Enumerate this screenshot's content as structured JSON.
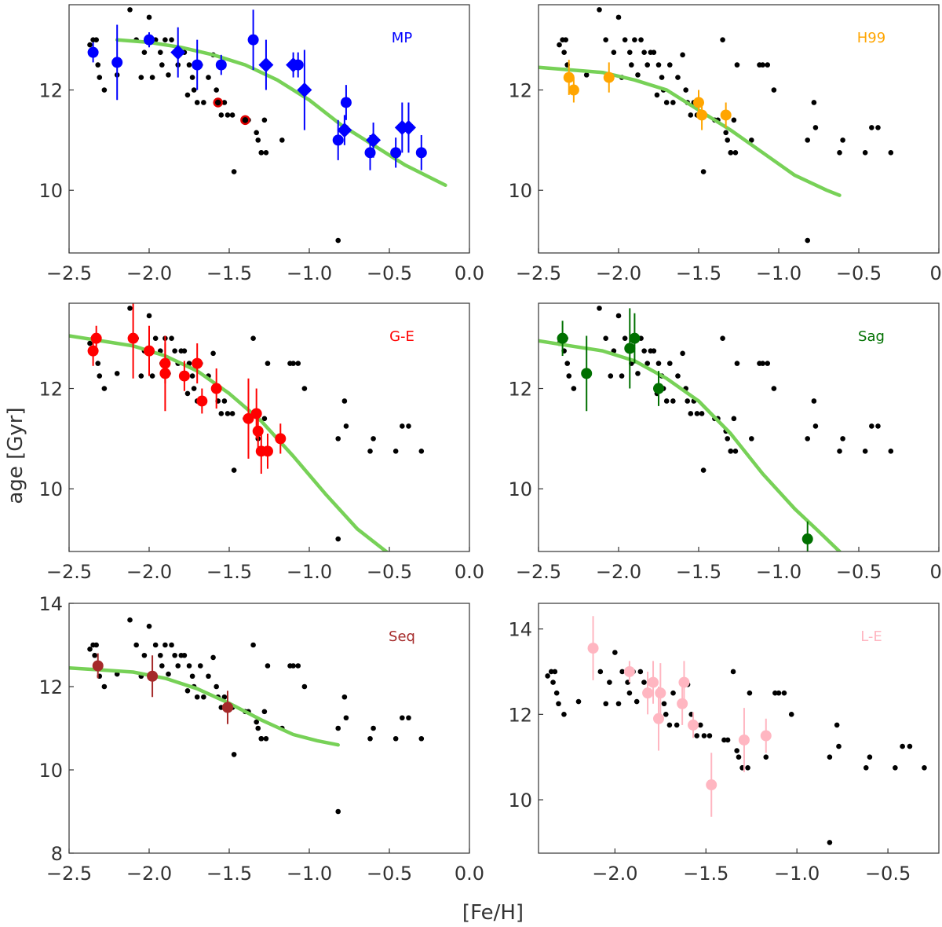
{
  "figure": {
    "ylabel": "age [Gyr]",
    "xlabel": "[Fe/H]",
    "fit_color": "#77d157",
    "background_color": "#000000"
  },
  "chart_data": [
    {
      "type": "scatter",
      "label": "MP",
      "label_color": "#0000ff",
      "xlim": [
        -2.5,
        0.0
      ],
      "ylim": [
        8.75,
        13.7
      ],
      "xticks": [
        -2.5,
        -2.0,
        -1.5,
        -1.0,
        -0.5,
        0.0
      ],
      "xtick_labels": [
        "−2.5",
        "−2.0",
        "−1.5",
        "−1.0",
        "−0.5",
        "0.0"
      ],
      "yticks": [
        10,
        12
      ],
      "ytick_labels": [
        "10",
        "12"
      ],
      "fit": {
        "x": [
          -2.2,
          -2.0,
          -1.8,
          -1.6,
          -1.4,
          -1.2,
          -1.0,
          -0.8,
          -0.6,
          -0.4,
          -0.15
        ],
        "y": [
          13.0,
          12.95,
          12.85,
          12.7,
          12.5,
          12.2,
          11.8,
          11.3,
          10.9,
          10.5,
          10.1
        ]
      },
      "highlight": {
        "name": "MP",
        "color": "#0000ff",
        "points": [
          {
            "x": -2.35,
            "y": 12.75,
            "err": 0.2,
            "marker": "o"
          },
          {
            "x": -2.2,
            "y": 12.55,
            "err": 0.75,
            "marker": "o"
          },
          {
            "x": -2.0,
            "y": 13.0,
            "err": 0.15,
            "marker": "o"
          },
          {
            "x": -1.82,
            "y": 12.75,
            "err": 0.5,
            "marker": "D"
          },
          {
            "x": -1.7,
            "y": 12.5,
            "err": 0.5,
            "marker": "o"
          },
          {
            "x": -1.55,
            "y": 12.5,
            "err": 0.2,
            "marker": "o"
          },
          {
            "x": -1.35,
            "y": 13.0,
            "err": 0.6,
            "marker": "o"
          },
          {
            "x": -1.27,
            "y": 12.5,
            "err": 0.5,
            "marker": "D"
          },
          {
            "x": -1.1,
            "y": 12.5,
            "err": 0.25,
            "marker": "D"
          },
          {
            "x": -1.07,
            "y": 12.5,
            "err": 0.25,
            "marker": "o"
          },
          {
            "x": -1.03,
            "y": 12.0,
            "err": 0.8,
            "marker": "D"
          },
          {
            "x": -0.82,
            "y": 11.0,
            "err": 0.4,
            "marker": "o"
          },
          {
            "x": -0.78,
            "y": 11.2,
            "err": 0.3,
            "marker": "D"
          },
          {
            "x": -0.77,
            "y": 11.75,
            "err": 0.35,
            "marker": "o"
          },
          {
            "x": -0.62,
            "y": 10.75,
            "err": 0.35,
            "marker": "o"
          },
          {
            "x": -0.6,
            "y": 11.0,
            "err": 0.35,
            "marker": "D"
          },
          {
            "x": -0.46,
            "y": 10.75,
            "err": 0.3,
            "marker": "o"
          },
          {
            "x": -0.42,
            "y": 11.25,
            "err": 0.5,
            "marker": "D"
          },
          {
            "x": -0.38,
            "y": 11.25,
            "err": 0.5,
            "marker": "D"
          },
          {
            "x": -0.3,
            "y": 10.75,
            "err": 0.35,
            "marker": "o"
          }
        ]
      },
      "extra": {
        "name": "red-ringed",
        "points": [
          {
            "x": -1.57,
            "y": 11.75
          },
          {
            "x": -1.4,
            "y": 11.4
          }
        ]
      }
    },
    {
      "type": "scatter",
      "label": "H99",
      "label_color": "#ffa500",
      "xlim": [
        -2.5,
        0.0
      ],
      "ylim": [
        8.75,
        13.7
      ],
      "xticks": [
        -2.5,
        -2.0,
        -1.5,
        -1.0,
        -0.5,
        0.0
      ],
      "xtick_labels": [
        "−2.5",
        "−2.0",
        "−1.5",
        "−1.0",
        "−0.5",
        "0."
      ],
      "yticks": [
        10,
        12
      ],
      "ytick_labels": [
        "10",
        "12"
      ],
      "fit": {
        "x": [
          -2.5,
          -2.3,
          -2.1,
          -1.9,
          -1.7,
          -1.5,
          -1.3,
          -1.1,
          -0.9,
          -0.7,
          -0.62
        ],
        "y": [
          12.45,
          12.4,
          12.35,
          12.2,
          12.0,
          11.6,
          11.2,
          10.75,
          10.3,
          10.0,
          9.9
        ]
      },
      "highlight": {
        "name": "H99",
        "color": "#ffa500",
        "points": [
          {
            "x": -2.31,
            "y": 12.25,
            "err": 0.35,
            "marker": "o"
          },
          {
            "x": -2.28,
            "y": 12.0,
            "err": 0.25,
            "marker": "o"
          },
          {
            "x": -2.06,
            "y": 12.25,
            "err": 0.3,
            "marker": "o"
          },
          {
            "x": -1.5,
            "y": 11.75,
            "err": 0.25,
            "marker": "o"
          },
          {
            "x": -1.48,
            "y": 11.5,
            "err": 0.3,
            "marker": "o"
          },
          {
            "x": -1.33,
            "y": 11.5,
            "err": 0.25,
            "marker": "o"
          }
        ]
      }
    },
    {
      "type": "scatter",
      "label": "G-E",
      "label_color": "#ff0000",
      "xlim": [
        -2.5,
        0.0
      ],
      "ylim": [
        8.75,
        13.7
      ],
      "xticks": [
        -2.5,
        -2.0,
        -1.5,
        -1.0,
        -0.5,
        0.0
      ],
      "xtick_labels": [
        "−2.5",
        "−2.0",
        "−1.5",
        "−1.0",
        "−0.5",
        "0.0"
      ],
      "yticks": [
        10,
        12
      ],
      "ytick_labels": [
        "10",
        "12"
      ],
      "fit": {
        "x": [
          -2.5,
          -2.3,
          -2.1,
          -1.9,
          -1.7,
          -1.5,
          -1.3,
          -1.1,
          -0.9,
          -0.7,
          -0.5
        ],
        "y": [
          13.05,
          12.95,
          12.85,
          12.65,
          12.35,
          11.9,
          11.35,
          10.65,
          9.9,
          9.2,
          8.7
        ]
      },
      "highlight": {
        "name": "G-E",
        "color": "#ff0000",
        "points": [
          {
            "x": -2.35,
            "y": 12.75,
            "err": 0.3,
            "marker": "o"
          },
          {
            "x": -2.33,
            "y": 13.0,
            "err": 0.25,
            "marker": "o"
          },
          {
            "x": -2.1,
            "y": 13.0,
            "err": 0.8,
            "marker": "o"
          },
          {
            "x": -2.0,
            "y": 12.75,
            "err": 0.5,
            "marker": "o"
          },
          {
            "x": -1.9,
            "y": 12.5,
            "err": 0.4,
            "marker": "o"
          },
          {
            "x": -1.9,
            "y": 12.3,
            "err": 0.75,
            "marker": "o"
          },
          {
            "x": -1.78,
            "y": 12.25,
            "err": 0.3,
            "marker": "o"
          },
          {
            "x": -1.7,
            "y": 12.5,
            "err": 0.4,
            "marker": "o"
          },
          {
            "x": -1.67,
            "y": 11.75,
            "err": 0.25,
            "marker": "o"
          },
          {
            "x": -1.58,
            "y": 12.0,
            "err": 0.4,
            "marker": "o"
          },
          {
            "x": -1.38,
            "y": 11.4,
            "err": 0.8,
            "marker": "o"
          },
          {
            "x": -1.33,
            "y": 11.5,
            "err": 0.5,
            "marker": "o"
          },
          {
            "x": -1.32,
            "y": 11.15,
            "err": 0.4,
            "marker": "o"
          },
          {
            "x": -1.3,
            "y": 10.75,
            "err": 0.45,
            "marker": "o"
          },
          {
            "x": -1.26,
            "y": 10.75,
            "err": 0.35,
            "marker": "o"
          },
          {
            "x": -1.18,
            "y": 11.0,
            "err": 0.3,
            "marker": "o"
          }
        ]
      }
    },
    {
      "type": "scatter",
      "label": "Sag",
      "label_color": "#007000",
      "xlim": [
        -2.5,
        0.0
      ],
      "ylim": [
        8.75,
        13.7
      ],
      "xticks": [
        -2.5,
        -2.0,
        -1.5,
        -1.0,
        -0.5,
        0.0
      ],
      "xtick_labels": [
        "−2.5",
        "−2.0",
        "−1.5",
        "−1.0",
        "−0.5",
        "0."
      ],
      "yticks": [
        10,
        12
      ],
      "ytick_labels": [
        "10",
        "12"
      ],
      "fit": {
        "x": [
          -2.5,
          -2.3,
          -2.1,
          -1.9,
          -1.7,
          -1.5,
          -1.3,
          -1.1,
          -0.9,
          -0.75,
          -0.62
        ],
        "y": [
          12.95,
          12.85,
          12.75,
          12.55,
          12.2,
          11.75,
          11.1,
          10.3,
          9.6,
          9.15,
          8.75
        ]
      },
      "highlight": {
        "name": "Sag",
        "color": "#007000",
        "points": [
          {
            "x": -2.35,
            "y": 13.0,
            "err": 0.35,
            "marker": "o"
          },
          {
            "x": -2.2,
            "y": 12.3,
            "err": 0.75,
            "marker": "o"
          },
          {
            "x": -1.93,
            "y": 12.8,
            "err": 0.8,
            "marker": "o"
          },
          {
            "x": -1.9,
            "y": 13.0,
            "err": 0.5,
            "marker": "o"
          },
          {
            "x": -1.75,
            "y": 12.0,
            "err": 0.35,
            "marker": "o"
          },
          {
            "x": -0.82,
            "y": 9.0,
            "err": 0.35,
            "marker": "o"
          }
        ]
      }
    },
    {
      "type": "scatter",
      "label": "Seq",
      "label_color": "#a52a2a",
      "xlim": [
        -2.5,
        0.0
      ],
      "ylim": [
        8.0,
        14.0
      ],
      "xticks": [
        -2.5,
        -2.0,
        -1.5,
        -1.0,
        -0.5,
        0.0
      ],
      "xtick_labels": [
        "−2.5",
        "−2.0",
        "−1.5",
        "−1.0",
        "−0.5",
        "0.0"
      ],
      "yticks": [
        8,
        10,
        12,
        14
      ],
      "ytick_labels": [
        "8",
        "10",
        "12",
        "14"
      ],
      "fit": {
        "x": [
          -2.5,
          -2.3,
          -2.1,
          -1.9,
          -1.7,
          -1.5,
          -1.3,
          -1.1,
          -0.95,
          -0.82
        ],
        "y": [
          12.45,
          12.4,
          12.35,
          12.2,
          11.95,
          11.6,
          11.2,
          10.85,
          10.7,
          10.6
        ]
      },
      "highlight": {
        "name": "Seq",
        "color": "#a52a2a",
        "points": [
          {
            "x": -2.32,
            "y": 12.5,
            "err": 0.3,
            "marker": "o"
          },
          {
            "x": -1.98,
            "y": 12.25,
            "err": 0.5,
            "marker": "o"
          },
          {
            "x": -1.51,
            "y": 11.5,
            "err": 0.4,
            "marker": "o"
          }
        ]
      }
    },
    {
      "type": "scatter",
      "label": "L-E",
      "label_color": "#ffb6c1",
      "xlim": [
        -2.42,
        -0.22
      ],
      "ylim": [
        8.75,
        14.6
      ],
      "xticks": [
        -2.0,
        -1.5,
        -1.0,
        -0.5
      ],
      "xtick_labels": [
        "−2.0",
        "−1.5",
        "−1.0",
        "−0.5"
      ],
      "yticks": [
        10,
        12,
        14
      ],
      "ytick_labels": [
        "10",
        "12",
        "14"
      ],
      "fit": null,
      "highlight": {
        "name": "L-E",
        "color": "#ffb6c1",
        "points": [
          {
            "x": -2.12,
            "y": 13.55,
            "err": 0.75,
            "marker": "o"
          },
          {
            "x": -1.92,
            "y": 13.0,
            "err": 0.25,
            "marker": "o"
          },
          {
            "x": -1.82,
            "y": 12.5,
            "err": 0.5,
            "marker": "o"
          },
          {
            "x": -1.79,
            "y": 12.75,
            "err": 0.5,
            "marker": "o"
          },
          {
            "x": -1.76,
            "y": 11.9,
            "err": 0.75,
            "marker": "o"
          },
          {
            "x": -1.75,
            "y": 12.5,
            "err": 0.7,
            "marker": "o"
          },
          {
            "x": -1.63,
            "y": 12.25,
            "err": 0.5,
            "marker": "o"
          },
          {
            "x": -1.62,
            "y": 12.75,
            "err": 0.5,
            "marker": "o"
          },
          {
            "x": -1.57,
            "y": 11.75,
            "err": 0.3,
            "marker": "o"
          },
          {
            "x": -1.47,
            "y": 10.35,
            "err": 0.75,
            "marker": "o"
          },
          {
            "x": -1.29,
            "y": 11.4,
            "err": 0.75,
            "marker": "o"
          },
          {
            "x": -1.17,
            "y": 11.5,
            "err": 0.4,
            "marker": "o"
          }
        ]
      }
    }
  ],
  "background_points": [
    [
      -2.37,
      12.9
    ],
    [
      -2.35,
      13.0
    ],
    [
      -2.33,
      13.0
    ],
    [
      -2.34,
      12.75
    ],
    [
      -2.32,
      12.5
    ],
    [
      -2.31,
      12.25
    ],
    [
      -2.28,
      12.0
    ],
    [
      -2.2,
      12.3
    ],
    [
      -2.12,
      13.6
    ],
    [
      -2.08,
      13.0
    ],
    [
      -2.05,
      12.25
    ],
    [
      -2.03,
      12.75
    ],
    [
      -2.0,
      13.45
    ],
    [
      -1.98,
      12.25
    ],
    [
      -1.96,
      13.0
    ],
    [
      -1.93,
      12.75
    ],
    [
      -1.92,
      12.5
    ],
    [
      -1.9,
      13.0
    ],
    [
      -1.88,
      12.3
    ],
    [
      -1.86,
      13.0
    ],
    [
      -1.84,
      12.75
    ],
    [
      -1.82,
      12.5
    ],
    [
      -1.8,
      12.75
    ],
    [
      -1.78,
      12.75
    ],
    [
      -1.76,
      11.9
    ],
    [
      -1.75,
      12.5
    ],
    [
      -1.73,
      12.25
    ],
    [
      -1.72,
      12.0
    ],
    [
      -1.7,
      11.75
    ],
    [
      -1.68,
      12.5
    ],
    [
      -1.66,
      11.75
    ],
    [
      -1.63,
      12.25
    ],
    [
      -1.6,
      12.7
    ],
    [
      -1.58,
      12.0
    ],
    [
      -1.57,
      11.75
    ],
    [
      -1.55,
      11.5
    ],
    [
      -1.53,
      11.75
    ],
    [
      -1.51,
      11.5
    ],
    [
      -1.48,
      11.5
    ],
    [
      -1.47,
      10.37
    ],
    [
      -1.4,
      11.4
    ],
    [
      -1.38,
      11.4
    ],
    [
      -1.35,
      13.0
    ],
    [
      -1.33,
      11.15
    ],
    [
      -1.32,
      11.0
    ],
    [
      -1.3,
      10.75
    ],
    [
      -1.28,
      11.4
    ],
    [
      -1.26,
      12.5
    ],
    [
      -1.3,
      10.75
    ],
    [
      -1.27,
      10.75
    ],
    [
      -1.17,
      11.0
    ],
    [
      -1.12,
      12.5
    ],
    [
      -1.1,
      12.5
    ],
    [
      -1.07,
      12.5
    ],
    [
      -1.03,
      12.0
    ],
    [
      -0.82,
      9.0
    ],
    [
      -0.82,
      11.0
    ],
    [
      -0.78,
      11.75
    ],
    [
      -0.77,
      11.25
    ],
    [
      -0.62,
      10.75
    ],
    [
      -0.6,
      11.0
    ],
    [
      -0.46,
      10.75
    ],
    [
      -0.42,
      11.25
    ],
    [
      -0.38,
      11.25
    ],
    [
      -0.3,
      10.75
    ]
  ]
}
